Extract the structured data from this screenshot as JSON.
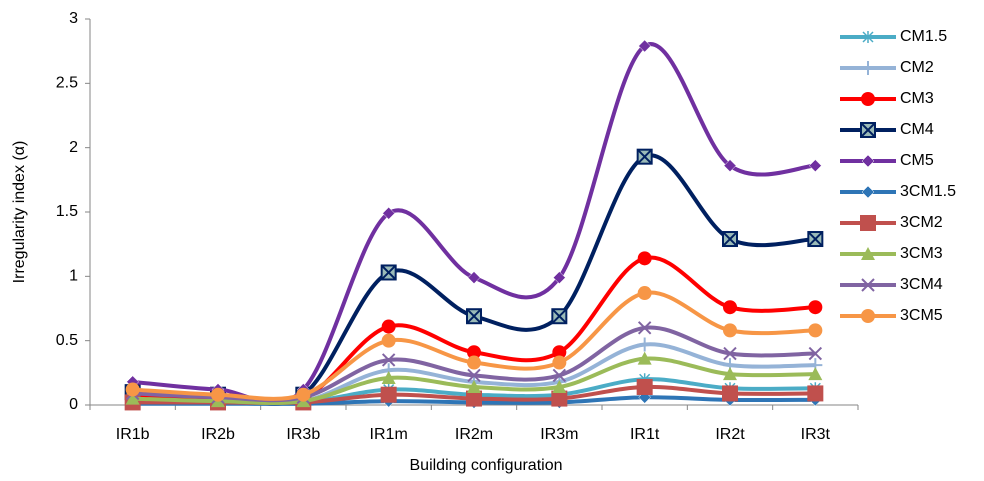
{
  "chart_data": {
    "type": "line",
    "smooth": true,
    "x_label": "Building configuration",
    "y_label": "Irregularity index (α)",
    "categories": [
      "IR1b",
      "IR2b",
      "IR3b",
      "IR1m",
      "IR2m",
      "IR3m",
      "IR1t",
      "IR2t",
      "IR3t"
    ],
    "ylim": [
      0,
      3
    ],
    "yticks": [
      0,
      0.5,
      1,
      1.5,
      2,
      2.5,
      3
    ],
    "grid": false,
    "legend": "right",
    "series": [
      {
        "name": "CM1.5",
        "color": "#4bacc6",
        "marker": "star",
        "values": [
          0.03,
          0.02,
          0.02,
          0.12,
          0.08,
          0.08,
          0.2,
          0.13,
          0.13
        ]
      },
      {
        "name": "CM2",
        "color": "#95b3d7",
        "marker": "plus",
        "values": [
          0.05,
          0.03,
          0.03,
          0.27,
          0.18,
          0.18,
          0.47,
          0.31,
          0.31
        ]
      },
      {
        "name": "CM3",
        "color": "#ff0000",
        "marker": "circle",
        "values": [
          0.07,
          0.05,
          0.05,
          0.61,
          0.41,
          0.41,
          1.14,
          0.76,
          0.76
        ]
      },
      {
        "name": "CM4",
        "color": "#002060",
        "marker": "boxx",
        "values": [
          0.1,
          0.08,
          0.08,
          1.03,
          0.69,
          0.69,
          1.93,
          1.29,
          1.29
        ]
      },
      {
        "name": "CM5",
        "color": "#7030a0",
        "marker": "diamond",
        "values": [
          0.18,
          0.12,
          0.12,
          1.49,
          0.99,
          0.99,
          2.79,
          1.86,
          1.86
        ]
      },
      {
        "name": "3CM1.5",
        "color": "#2e75b6",
        "marker": "diamond",
        "values": [
          0.01,
          0.01,
          0.01,
          0.03,
          0.02,
          0.02,
          0.06,
          0.04,
          0.04
        ]
      },
      {
        "name": "3CM2",
        "color": "#c0504d",
        "marker": "square",
        "values": [
          0.02,
          0.02,
          0.02,
          0.08,
          0.05,
          0.05,
          0.14,
          0.09,
          0.09
        ]
      },
      {
        "name": "3CM3",
        "color": "#9bbb59",
        "marker": "triangle",
        "values": [
          0.05,
          0.03,
          0.03,
          0.21,
          0.14,
          0.14,
          0.36,
          0.24,
          0.24
        ]
      },
      {
        "name": "3CM4",
        "color": "#8064a2",
        "marker": "x",
        "values": [
          0.09,
          0.06,
          0.06,
          0.35,
          0.23,
          0.23,
          0.6,
          0.4,
          0.4
        ]
      },
      {
        "name": "3CM5",
        "color": "#f79646",
        "marker": "circle",
        "values": [
          0.12,
          0.08,
          0.08,
          0.5,
          0.33,
          0.33,
          0.87,
          0.58,
          0.58
        ]
      }
    ]
  }
}
